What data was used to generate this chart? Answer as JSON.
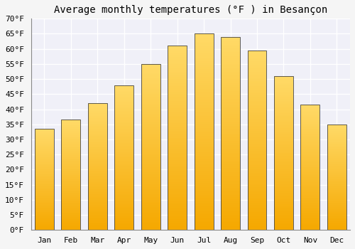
{
  "title": "Average monthly temperatures (°F ) in Besançon",
  "months": [
    "Jan",
    "Feb",
    "Mar",
    "Apr",
    "May",
    "Jun",
    "Jul",
    "Aug",
    "Sep",
    "Oct",
    "Nov",
    "Dec"
  ],
  "values": [
    33.5,
    36.5,
    42.0,
    48.0,
    55.0,
    61.0,
    65.0,
    64.0,
    59.5,
    51.0,
    41.5,
    35.0
  ],
  "bar_color_bottom": "#F5A800",
  "bar_color_top": "#FFD966",
  "bar_edge_color": "#444444",
  "ylim": [
    0,
    70
  ],
  "yticks": [
    0,
    5,
    10,
    15,
    20,
    25,
    30,
    35,
    40,
    45,
    50,
    55,
    60,
    65,
    70
  ],
  "ytick_labels": [
    "0°F",
    "5°F",
    "10°F",
    "15°F",
    "20°F",
    "25°F",
    "30°F",
    "35°F",
    "40°F",
    "45°F",
    "50°F",
    "55°F",
    "60°F",
    "65°F",
    "70°F"
  ],
  "background_color": "#f5f5f5",
  "plot_bg_color": "#f0f0f8",
  "grid_color": "#ffffff",
  "title_fontsize": 10,
  "tick_fontsize": 8,
  "bar_width": 0.72,
  "n_gradient_steps": 100
}
